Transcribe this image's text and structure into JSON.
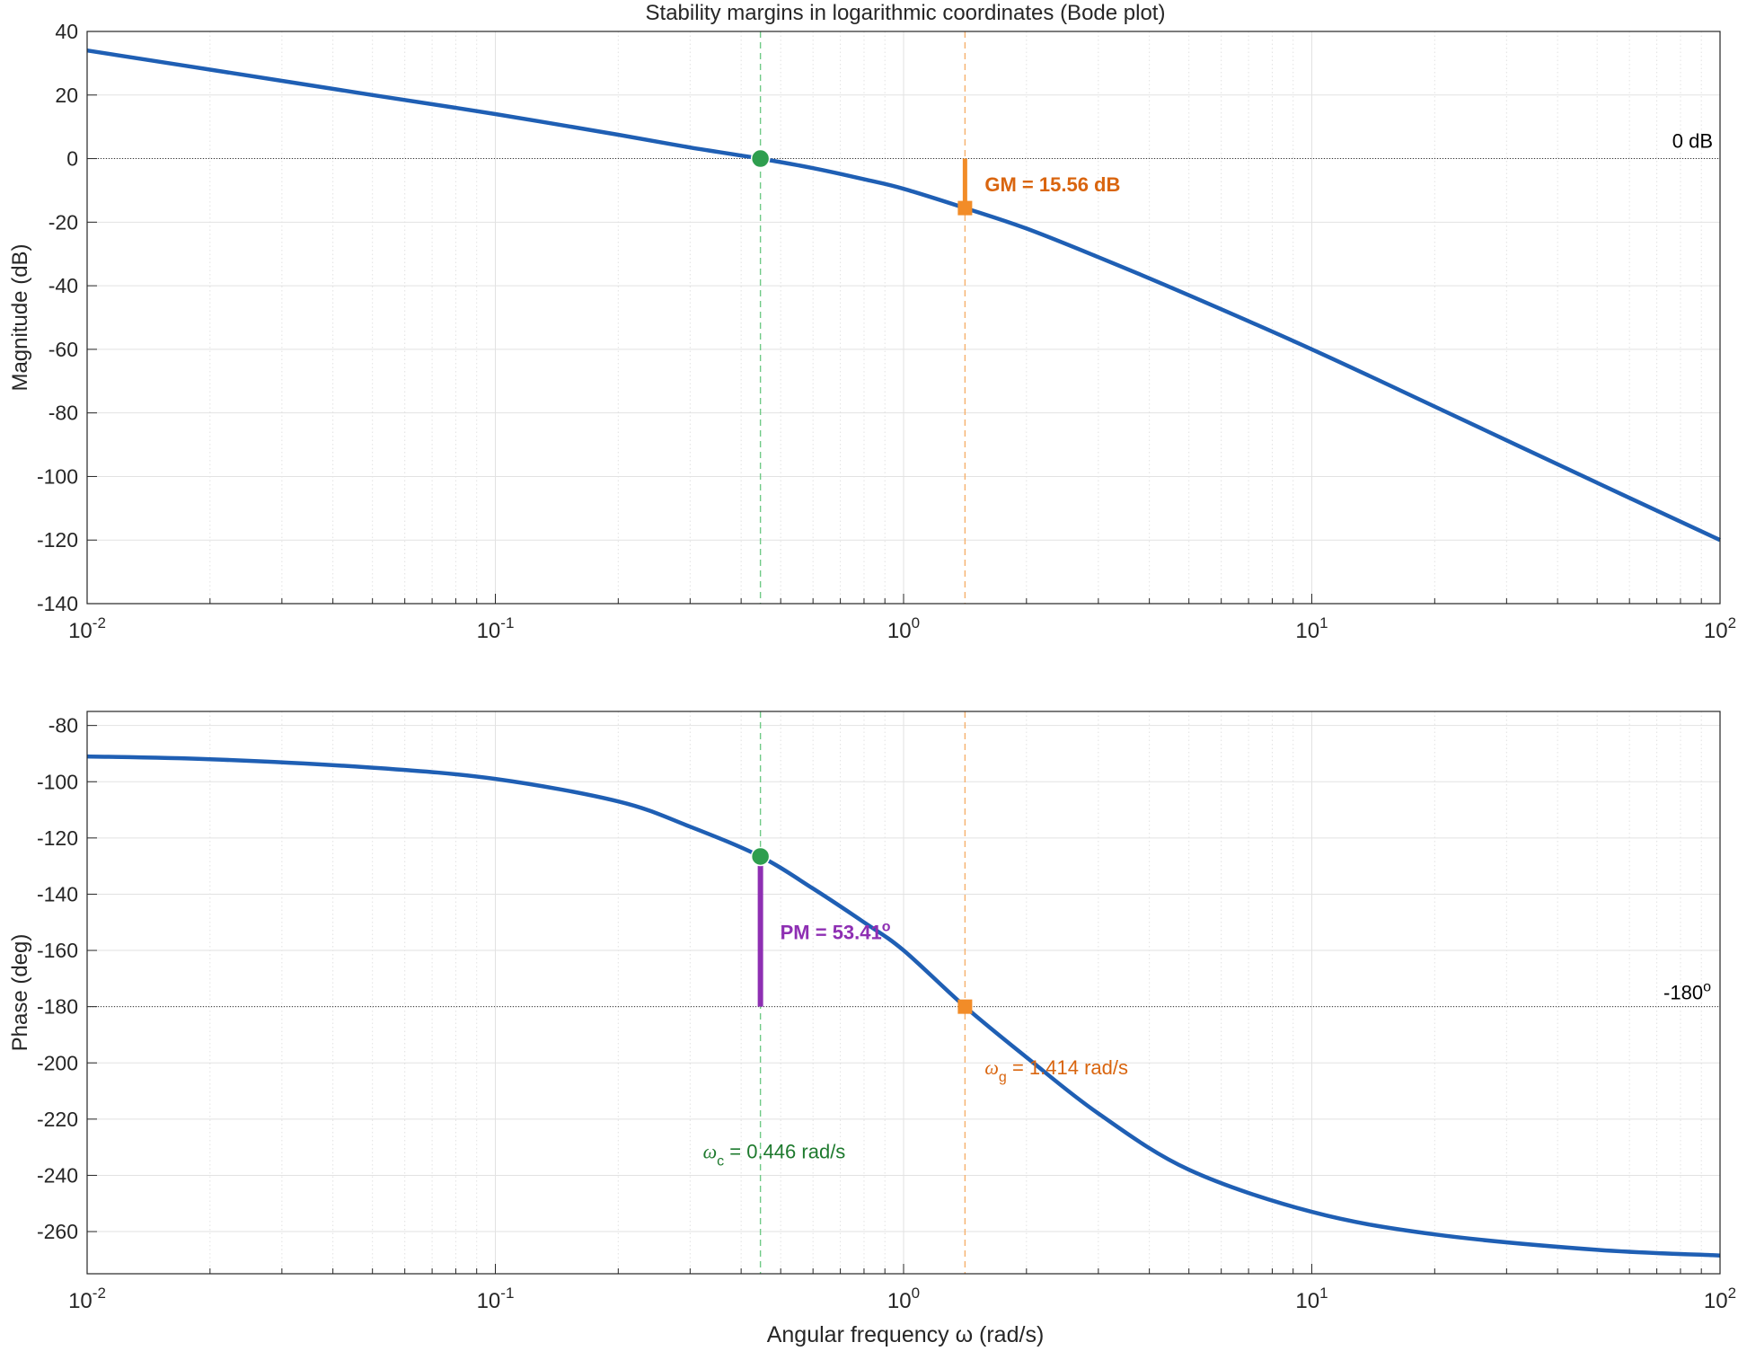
{
  "title": "Stability margins in logarithmic coordinates (Bode plot)",
  "colors": {
    "curve": "#1f5fb4",
    "crossover": "#2e9e4e",
    "gain_cross": "#f28c28",
    "gm_text": "#d9650f",
    "pm": "#8e2fb3",
    "omega_c_text": "#1e7a2e",
    "omega_g_text": "#d9650f",
    "grid": "#e2e2e2",
    "axis": "#262626"
  },
  "chart_data": [
    {
      "type": "line",
      "name": "magnitude",
      "ylabel": "Magnitude (dB)",
      "xlabel": "",
      "xscale": "log",
      "xlim": [
        0.01,
        100
      ],
      "ylim": [
        -140,
        40
      ],
      "yticks": [
        "40",
        "20",
        "0",
        "-20",
        "-40",
        "-60",
        "-80",
        "-100",
        "-120",
        "-140"
      ],
      "grid": true,
      "reference_line": {
        "value": 0,
        "label": "0 dB"
      },
      "series": [
        {
          "x": [
            0.01,
            0.02,
            0.05,
            0.1,
            0.2,
            0.3,
            0.446,
            0.6,
            0.8,
            1.0,
            1.414,
            2.0,
            3.0,
            5.0,
            10,
            20,
            50,
            100
          ],
          "values": [
            34,
            28,
            20,
            14,
            7.5,
            3.5,
            0,
            -3,
            -6.5,
            -9.5,
            -15.56,
            -22,
            -31,
            -43,
            -60,
            -78,
            -102,
            -120
          ]
        }
      ],
      "annotations": [
        {
          "label": "GM = 15.56 dB",
          "x": 1.414,
          "from": -15.56,
          "to": 0
        },
        {
          "marker": "circle",
          "x": 0.446,
          "y": 0
        },
        {
          "marker": "square",
          "x": 1.414,
          "y": -15.56
        }
      ]
    },
    {
      "type": "line",
      "name": "phase",
      "ylabel": "Phase (deg)",
      "xlabel": "Angular frequency ω (rad/s)",
      "xscale": "log",
      "xlim": [
        0.01,
        100
      ],
      "ylim": [
        -275,
        -75
      ],
      "yticks": [
        "-80",
        "-100",
        "-120",
        "-140",
        "-160",
        "-180",
        "-200",
        "-220",
        "-240",
        "-260"
      ],
      "grid": true,
      "reference_line": {
        "value": -180,
        "label": "-180"
      },
      "series": [
        {
          "x": [
            0.01,
            0.02,
            0.05,
            0.1,
            0.2,
            0.3,
            0.446,
            0.6,
            0.8,
            1.0,
            1.414,
            2.0,
            3.0,
            5.0,
            10,
            20,
            50,
            100
          ],
          "values": [
            -91,
            -92,
            -95,
            -99,
            -107,
            -116,
            -126.6,
            -138,
            -150,
            -160,
            -180,
            -198,
            -218,
            -238,
            -253,
            -261,
            -266.5,
            -268.5
          ]
        }
      ],
      "annotations": [
        {
          "label_prefix": "PM = ",
          "label": "53.41",
          "x": 0.446,
          "from": -180,
          "to": -126.59
        },
        {
          "marker": "circle",
          "x": 0.446,
          "y": -126.59
        },
        {
          "marker": "square",
          "x": 1.414,
          "y": -180
        },
        {
          "label_symbol": "ω",
          "label_sub": "c",
          "label": " = 0.446 rad/s",
          "x": 0.446
        },
        {
          "label_symbol": "ω",
          "label_sub": "g",
          "label": " = 1.414 rad/s",
          "x": 1.414
        }
      ]
    }
  ],
  "x_ticks": [
    {
      "base": "10",
      "exp": "-2"
    },
    {
      "base": "10",
      "exp": "-1"
    },
    {
      "base": "10",
      "exp": "0"
    },
    {
      "base": "10",
      "exp": "1"
    },
    {
      "base": "10",
      "exp": "2"
    }
  ],
  "degree_symbol": "o"
}
